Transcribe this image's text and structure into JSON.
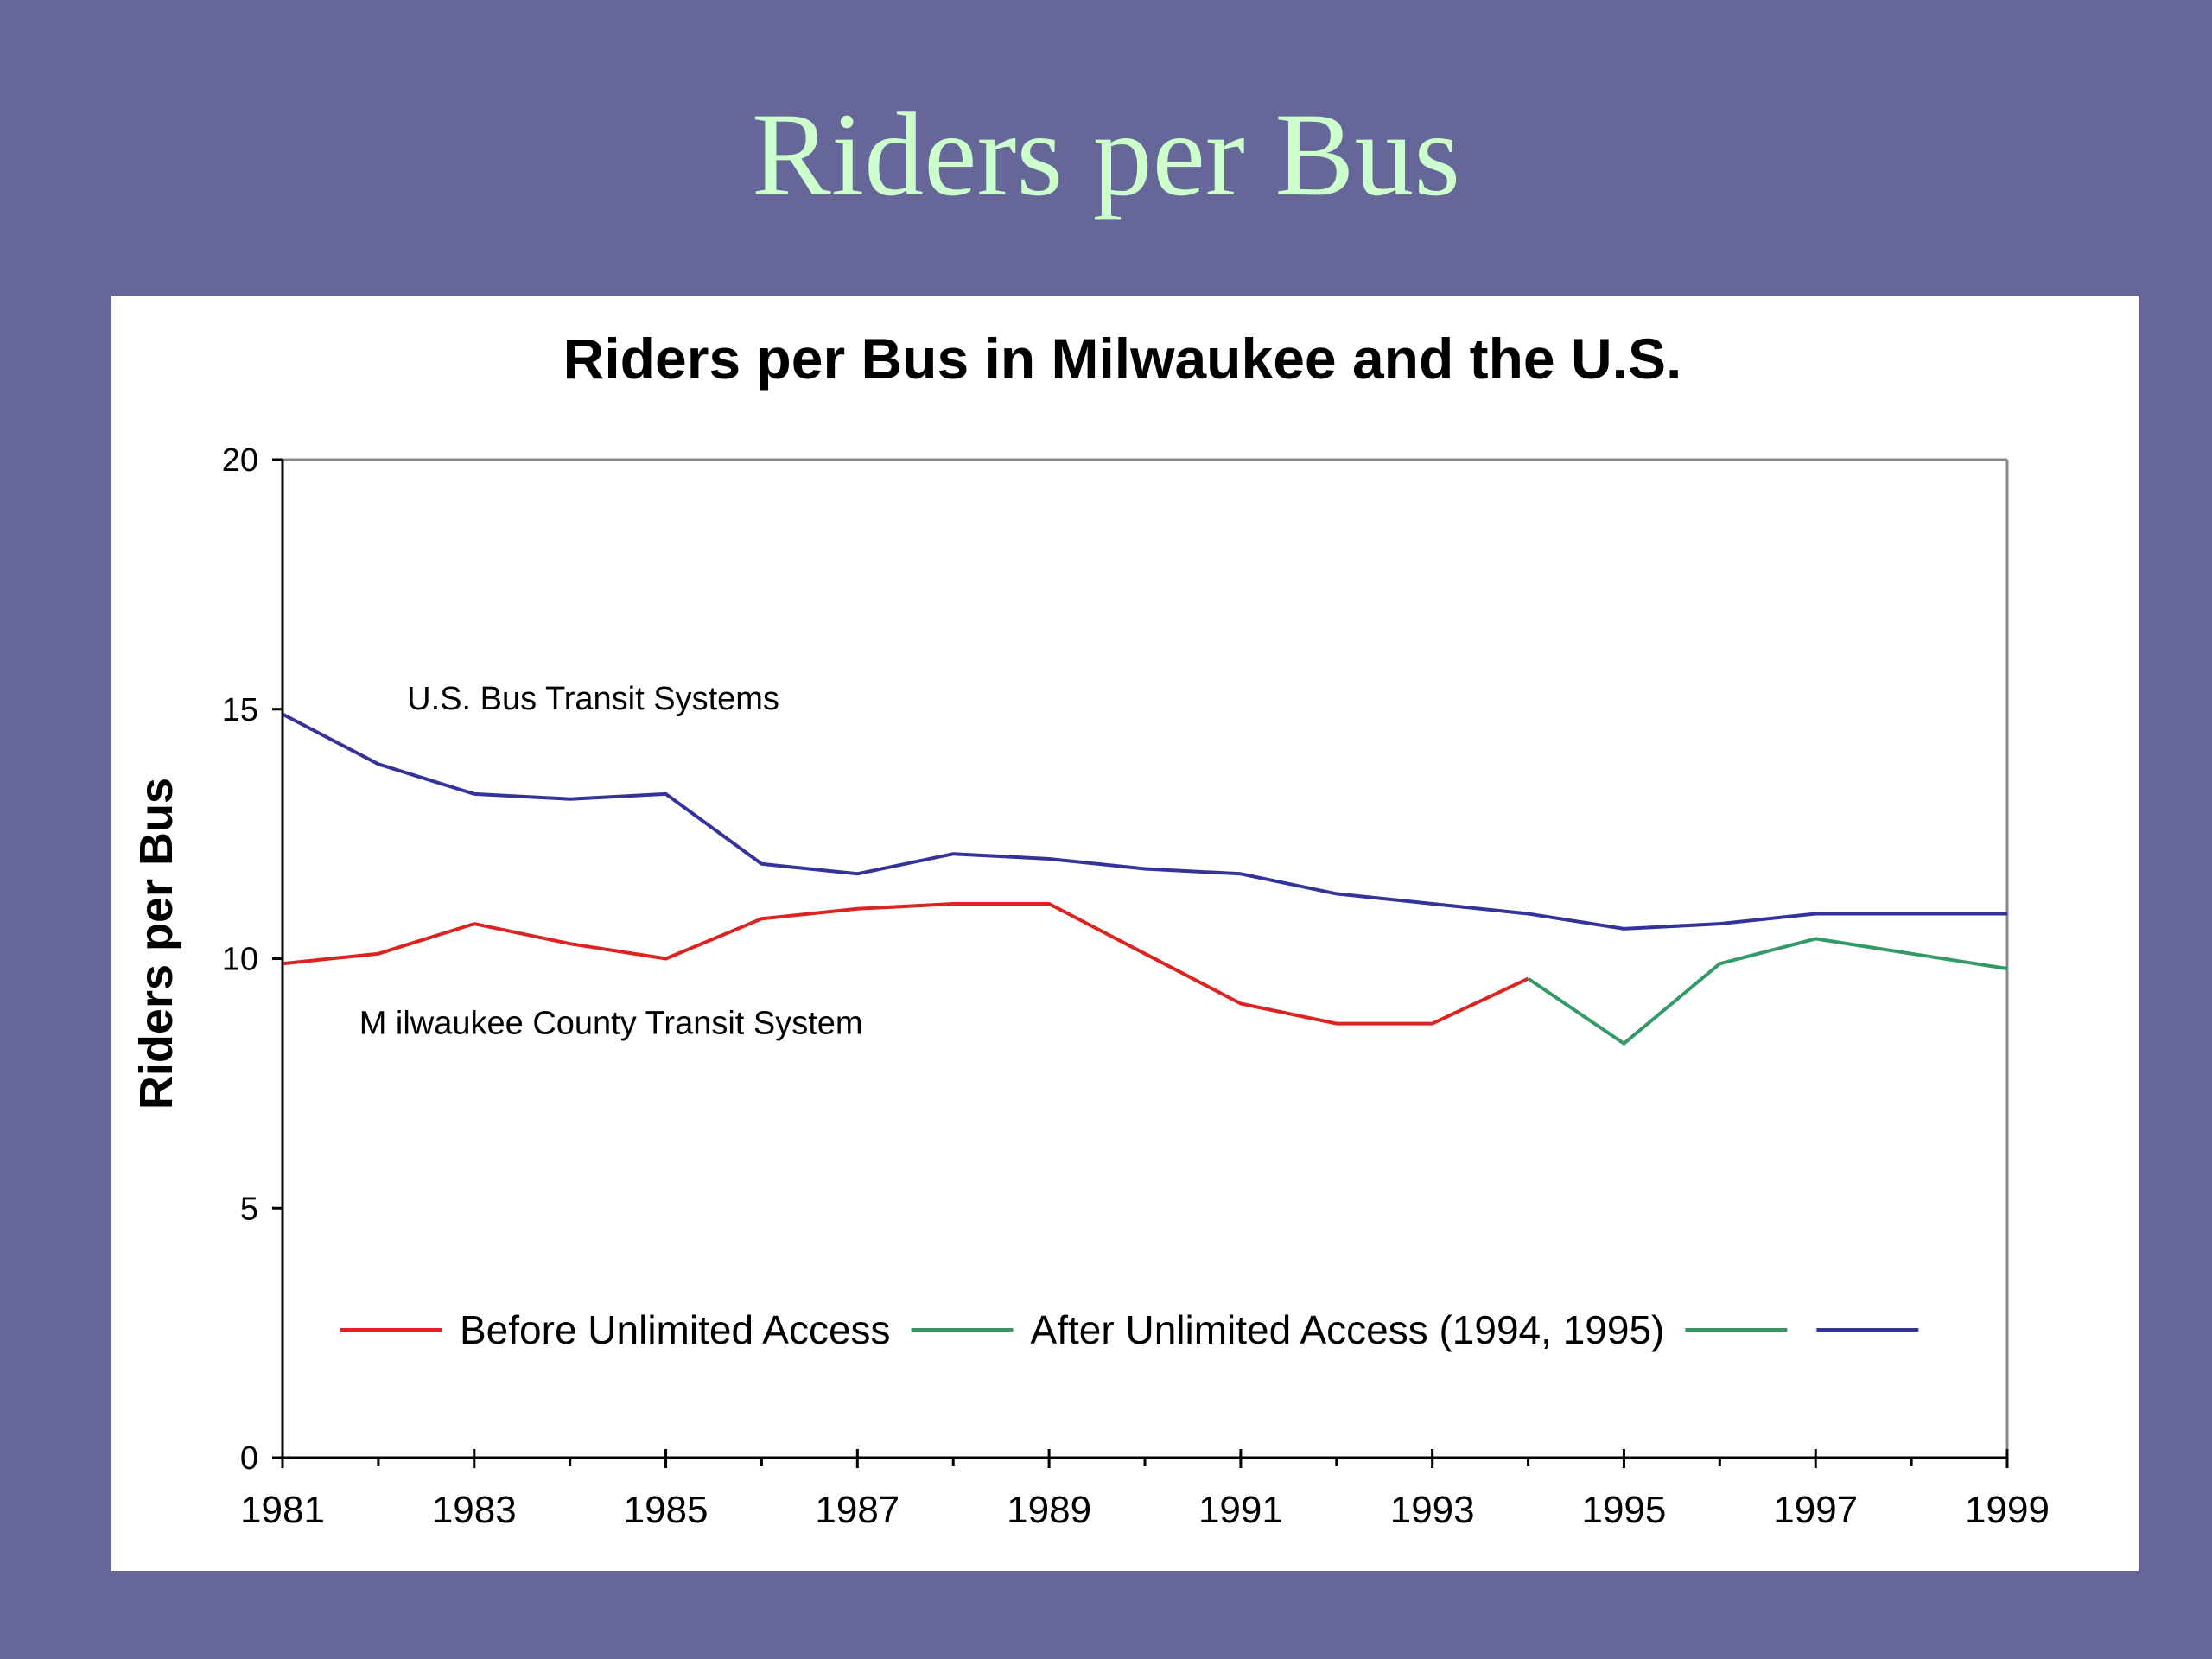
{
  "slide": {
    "title": "Riders per Bus",
    "background_color": "#666699",
    "title_color": "#ccffcc"
  },
  "chart_data": {
    "type": "line",
    "title": "Riders per Bus in Milwaukee and the U.S.",
    "xlabel": "",
    "ylabel": "Riders per Bus",
    "xlim": [
      1981,
      1999
    ],
    "ylim": [
      0,
      20
    ],
    "y_ticks": [
      0,
      5,
      10,
      15,
      20
    ],
    "x_tick_labels": [
      1981,
      1983,
      1985,
      1987,
      1989,
      1991,
      1993,
      1995,
      1997,
      1999
    ],
    "grid": false,
    "legend_position": "bottom-inside",
    "legend": [
      {
        "label": "Before Unlimited Access",
        "color": "#dd2222"
      },
      {
        "label": "After Unlimited Access (1994, 1995)",
        "color": "#339966"
      },
      {
        "label": "",
        "color": "#339966"
      },
      {
        "label": "",
        "color": "#333399"
      }
    ],
    "annotations": [
      {
        "text": "U.S. Bus Transit Systems",
        "x": 1982.3,
        "y": 15.2
      },
      {
        "text": "M ilwaukee County Transit System",
        "x": 1981.8,
        "y": 8.7
      }
    ],
    "series": [
      {
        "color": "#333399",
        "x": [
          1981,
          1982,
          1983,
          1984,
          1985,
          1986,
          1987,
          1988,
          1989,
          1990,
          1991,
          1992,
          1993,
          1994,
          1995,
          1996,
          1997,
          1998,
          1999
        ],
        "y": [
          14.9,
          13.9,
          13.3,
          13.2,
          13.3,
          11.9,
          11.7,
          12.1,
          12.0,
          11.8,
          11.7,
          11.3,
          11.1,
          10.9,
          10.6,
          10.7,
          10.9,
          10.9,
          10.9
        ]
      },
      {
        "color": "#dd2222",
        "x": [
          1981,
          1982,
          1983,
          1984,
          1985,
          1986,
          1987,
          1988,
          1989,
          1990,
          1991,
          1992,
          1993,
          1994
        ],
        "y": [
          9.9,
          10.1,
          10.7,
          10.3,
          10.0,
          10.8,
          11.0,
          11.1,
          11.1,
          10.1,
          9.1,
          8.7,
          8.7,
          9.6
        ]
      },
      {
        "color": "#339966",
        "x": [
          1994,
          1995,
          1996,
          1997,
          1998,
          1999
        ],
        "y": [
          9.6,
          8.3,
          9.9,
          10.4,
          10.1,
          9.8
        ]
      }
    ]
  }
}
